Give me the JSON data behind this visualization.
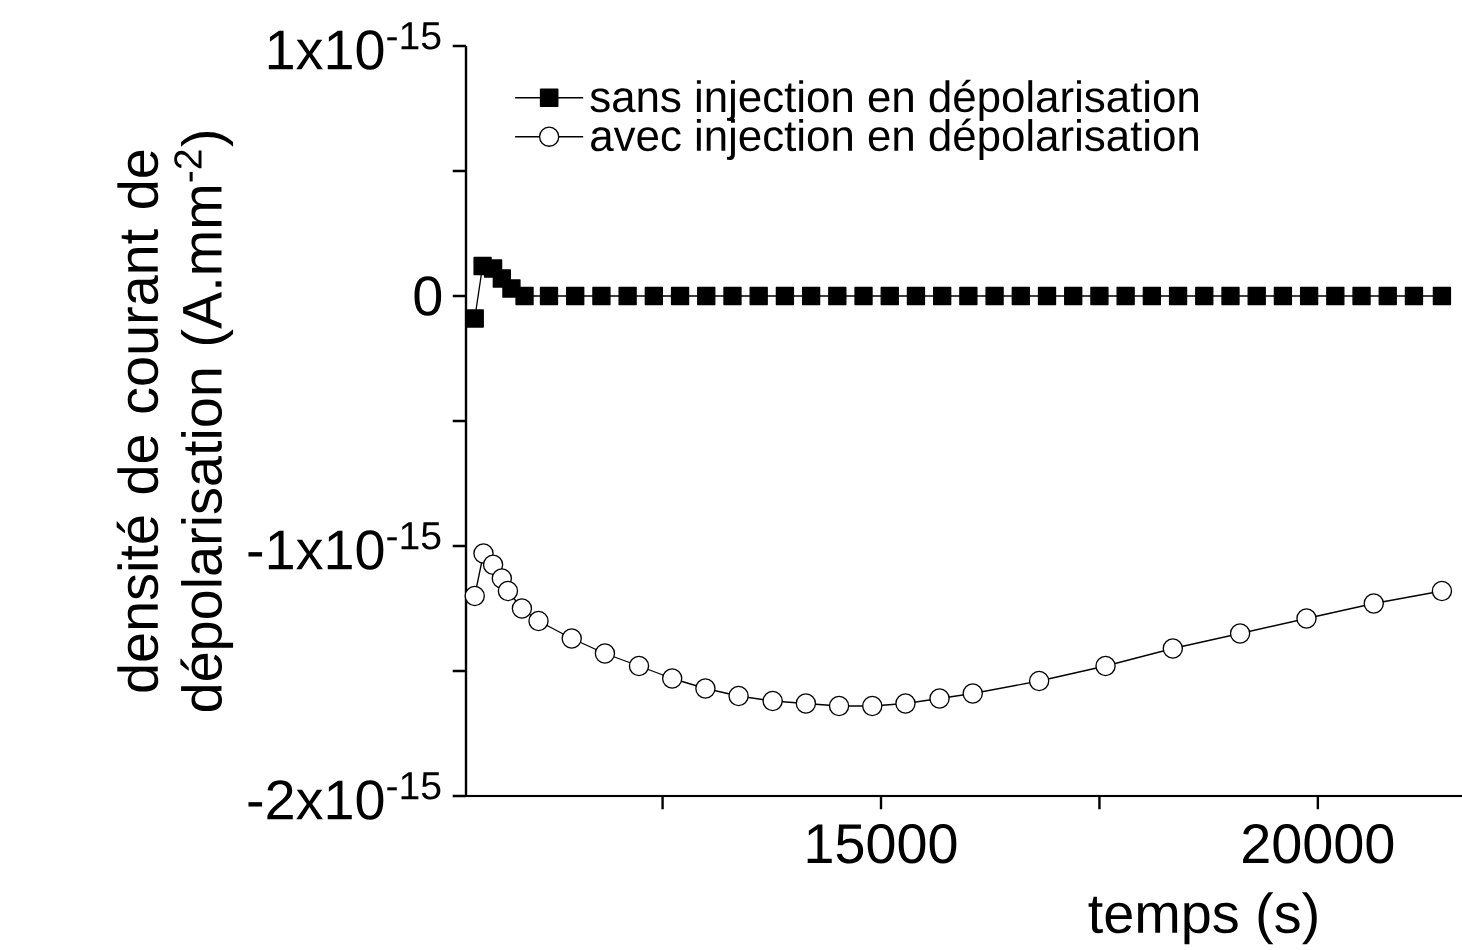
{
  "chart_data": {
    "type": "line",
    "xlabel": "temps (s)",
    "ylabel": "densité de courant de dépolarisation (A.mm$^{-2}$)",
    "xlim": [
      10250,
      21650
    ],
    "ylim": [
      -2e-15,
      1e-15
    ],
    "xticks": [
      {
        "value": 12500,
        "label": null
      },
      15000,
      {
        "value": 17500,
        "label": null
      },
      20000
    ],
    "yticks": [
      {
        "value": -2e-15,
        "label": "-2x10$^{-15}$"
      },
      {
        "value": -1.5e-15,
        "label": null
      },
      {
        "value": -1e-15,
        "label": "-1x10$^{-15}$"
      },
      {
        "value": -5e-16,
        "label": null
      },
      {
        "value": 0,
        "label": "0"
      },
      {
        "value": 5e-16,
        "label": null
      },
      {
        "value": 1e-15,
        "label": "1x10$^{-15}$"
      }
    ],
    "legend": "top left",
    "grid": false,
    "series": [
      {
        "name": "sans injection en dépolarisation",
        "color": "#000000",
        "marker": "square",
        "x": [
          10350,
          10440,
          10560,
          10660,
          10770,
          10920,
          11200,
          11500,
          11800,
          12100,
          12400,
          12700,
          13000,
          13300,
          13600,
          13900,
          14200,
          14500,
          14800,
          15100,
          15400,
          15700,
          16000,
          16300,
          16600,
          16900,
          17200,
          17500,
          17800,
          18100,
          18400,
          18700,
          19000,
          19300,
          19600,
          19900,
          20200,
          20500,
          20800,
          21100,
          21420
        ],
        "values": [
          -9e-17,
          1.2e-16,
          1.1e-16,
          7e-17,
          3e-17,
          0,
          0,
          0,
          0,
          0,
          0,
          0,
          0,
          0,
          0,
          0,
          0,
          0,
          0,
          0,
          0,
          0,
          0,
          0,
          0,
          0,
          0,
          0,
          0,
          0,
          0,
          0,
          0,
          0,
          0,
          0,
          0,
          0,
          0,
          0,
          0
        ]
      },
      {
        "name": "avec injection en dépolarisation",
        "color": "#000000",
        "marker": "circle",
        "x": [
          10350,
          10450,
          10560,
          10660,
          10730,
          10890,
          11080,
          11460,
          11840,
          12230,
          12610,
          12990,
          13370,
          13760,
          14140,
          14520,
          14900,
          15280,
          15670,
          16050,
          16810,
          17570,
          18340,
          19110,
          19870,
          20640,
          21420
        ],
        "values": [
          -1.2e-15,
          -1.03e-15,
          -1.075e-15,
          -1.13e-15,
          -1.18e-15,
          -1.25e-15,
          -1.3e-15,
          -1.37e-15,
          -1.43e-15,
          -1.48e-15,
          -1.53e-15,
          -1.57e-15,
          -1.6e-15,
          -1.62e-15,
          -1.63e-15,
          -1.64e-15,
          -1.64e-15,
          -1.63e-15,
          -1.61e-15,
          -1.59e-15,
          -1.54e-15,
          -1.48e-15,
          -1.41e-15,
          -1.35e-15,
          -1.29e-15,
          -1.23e-15,
          -1.18e-15
        ]
      }
    ]
  }
}
